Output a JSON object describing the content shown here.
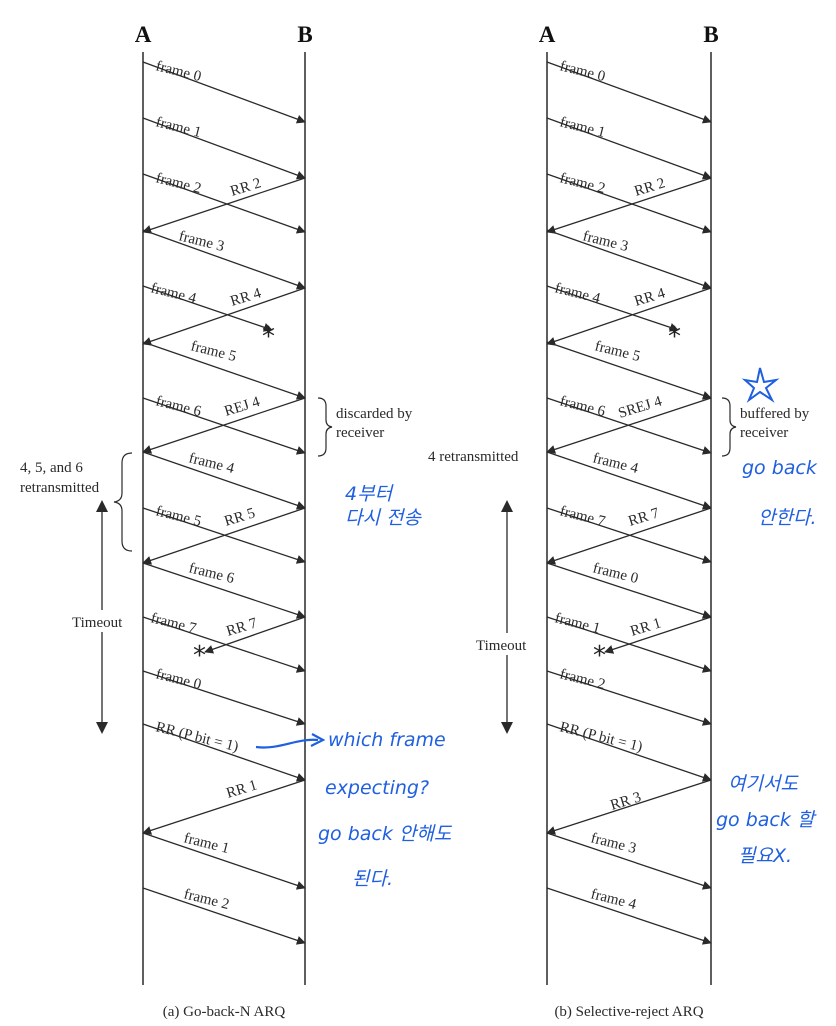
{
  "stations": {
    "a": "A",
    "b": "B"
  },
  "captions": {
    "left": "(a) Go-back-N ARQ",
    "right": "(b) Selective-reject ARQ"
  },
  "left": {
    "frames": [
      "frame 0",
      "frame 1",
      "frame 2",
      "frame 3",
      "frame 4",
      "frame 5",
      "frame 6",
      "frame 4",
      "frame 5",
      "frame 6",
      "frame 7",
      "frame 0",
      "RR (P bit = 1)",
      "frame 1",
      "frame 2"
    ],
    "acks": [
      "RR 2",
      "RR 4",
      "REJ 4",
      "RR 5",
      "RR 7",
      "RR 1"
    ],
    "discarded": [
      "discarded by",
      "receiver"
    ],
    "retransmitted": [
      "4, 5, and 6",
      "retransmitted"
    ],
    "timeout": "Timeout",
    "handwriting": [
      "4부터",
      "다시 전송",
      "which frame",
      "expecting?",
      "go back 안해도",
      "된다."
    ]
  },
  "right": {
    "frames": [
      "frame 0",
      "frame 1",
      "frame 2",
      "frame 3",
      "frame 4",
      "frame 5",
      "frame 6",
      "frame 4",
      "frame 7",
      "frame 0",
      "frame 1",
      "frame 2",
      "RR (P bit = 1)",
      "frame 3",
      "frame 4"
    ],
    "acks": [
      "RR 2",
      "RR 4",
      "SREJ 4",
      "RR 7",
      "RR 1",
      "RR 3"
    ],
    "buffered": [
      "buffered by",
      "receiver"
    ],
    "retransmitted": "4 retransmitted",
    "timeout": "Timeout",
    "handwriting": [
      "go back",
      "안한다.",
      "여기서도",
      "go back 할",
      "필요X."
    ]
  },
  "colors": {
    "ink": "#2a2a2a",
    "pen": "#1f5fe0"
  }
}
